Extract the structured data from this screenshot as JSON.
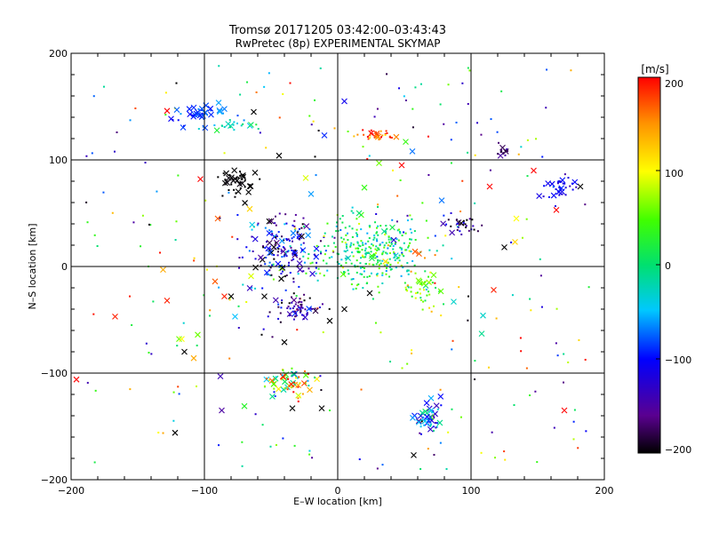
{
  "chart_data": {
    "type": "scatter",
    "title": "Tromsø 20171205 03:42:00–03:43:43",
    "subtitle": "RwPretec (8p) EXPERIMENTAL SKYMAP",
    "xlabel": "E–W location [km]",
    "ylabel": "N–S location [km]",
    "xlim": [
      -200,
      200
    ],
    "ylim": [
      -200,
      200
    ],
    "xticks": [
      "−200",
      "−100",
      "0",
      "100",
      "200"
    ],
    "yticks": [
      "−200",
      "−100",
      "0",
      "100",
      "200"
    ],
    "grid": true,
    "grid_lines_x": [
      -100,
      0,
      100
    ],
    "grid_lines_y": [
      -100,
      0,
      100
    ],
    "colorbar": {
      "label": "[m/s]",
      "range": [
        -200,
        200
      ],
      "ticks": [
        "200",
        "100",
        "0",
        "−100",
        "−200"
      ],
      "colormap": "black-purple-blue-cyan-green-yellow-red"
    },
    "marker_legend_note": "",
    "clusters": [
      {
        "x": -103,
        "y": 142,
        "sx": 10,
        "sy": 5,
        "n": 40,
        "v": -90,
        "spread_v": 30,
        "crossfrac": 0.6
      },
      {
        "x": -78,
        "y": 133,
        "sx": 7,
        "sy": 4,
        "n": 20,
        "v": -20,
        "spread_v": 30,
        "crossfrac": 0.3
      },
      {
        "x": -75,
        "y": 77,
        "sx": 7,
        "sy": 6,
        "n": 40,
        "v": -200,
        "spread_v": 5,
        "crossfrac": 0.5
      },
      {
        "x": -42,
        "y": 15,
        "sx": 14,
        "sy": 17,
        "n": 170,
        "v": -120,
        "spread_v": 90,
        "crossfrac": 0.2
      },
      {
        "x": -30,
        "y": -40,
        "sx": 9,
        "sy": 6,
        "n": 70,
        "v": -150,
        "spread_v": 50,
        "crossfrac": 0.1
      },
      {
        "x": 25,
        "y": 15,
        "sx": 22,
        "sy": 17,
        "n": 320,
        "v": 10,
        "spread_v": 70,
        "crossfrac": 0.05
      },
      {
        "x": 28,
        "y": 122,
        "sx": 8,
        "sy": 3,
        "n": 35,
        "v": 170,
        "spread_v": 40,
        "crossfrac": 0.2
      },
      {
        "x": 65,
        "y": -20,
        "sx": 6,
        "sy": 9,
        "n": 45,
        "v": 60,
        "spread_v": 60,
        "crossfrac": 0.1
      },
      {
        "x": 92,
        "y": 37,
        "sx": 6,
        "sy": 5,
        "n": 30,
        "v": -160,
        "spread_v": 60,
        "crossfrac": 0.2
      },
      {
        "x": 124,
        "y": 108,
        "sx": 3,
        "sy": 3,
        "n": 15,
        "v": -160,
        "spread_v": 30,
        "crossfrac": 0.1
      },
      {
        "x": 167,
        "y": 74,
        "sx": 6,
        "sy": 6,
        "n": 35,
        "v": -110,
        "spread_v": 25,
        "crossfrac": 0.3
      },
      {
        "x": -35,
        "y": -110,
        "sx": 8,
        "sy": 7,
        "n": 60,
        "v": 100,
        "spread_v": 160,
        "crossfrac": 0.4
      },
      {
        "x": 68,
        "y": -142,
        "sx": 5,
        "sy": 8,
        "n": 50,
        "v": -80,
        "spread_v": 80,
        "crossfrac": 0.5
      }
    ],
    "scatter_points": [
      {
        "x": -196,
        "y": -106,
        "v": 200,
        "m": "x"
      },
      {
        "x": -167,
        "y": -47,
        "v": 190,
        "m": "x"
      },
      {
        "x": -156,
        "y": -28,
        "v": 190,
        "m": "."
      },
      {
        "x": -131,
        "y": -3,
        "v": 140,
        "m": "x"
      },
      {
        "x": -128,
        "y": -32,
        "v": 190,
        "m": "x"
      },
      {
        "x": -128,
        "y": 146,
        "v": 200,
        "m": "x"
      },
      {
        "x": -122,
        "y": -156,
        "v": -200,
        "m": "x"
      },
      {
        "x": -121,
        "y": 172,
        "v": -200,
        "m": "."
      },
      {
        "x": -119,
        "y": -68,
        "v": 60,
        "m": "x"
      },
      {
        "x": -117,
        "y": -68,
        "v": 100,
        "m": "x"
      },
      {
        "x": -115,
        "y": -80,
        "v": -200,
        "m": "x"
      },
      {
        "x": -108,
        "y": -86,
        "v": 140,
        "m": "x"
      },
      {
        "x": -105,
        "y": -64,
        "v": 60,
        "m": "x"
      },
      {
        "x": -103,
        "y": 82,
        "v": 200,
        "m": "x"
      },
      {
        "x": -98,
        "y": -3,
        "v": 100,
        "m": "."
      },
      {
        "x": -92,
        "y": -14,
        "v": 170,
        "m": "x"
      },
      {
        "x": -90,
        "y": 45,
        "v": 170,
        "m": "x"
      },
      {
        "x": -88,
        "y": -103,
        "v": -140,
        "m": "x"
      },
      {
        "x": -87,
        "y": -135,
        "v": -150,
        "m": "x"
      },
      {
        "x": -85,
        "y": -28,
        "v": 190,
        "m": "x"
      },
      {
        "x": -80,
        "y": -28,
        "v": -200,
        "m": "x"
      },
      {
        "x": -77,
        "y": -47,
        "v": -50,
        "m": "x"
      },
      {
        "x": -70,
        "y": -131,
        "v": 30,
        "m": "x"
      },
      {
        "x": -66,
        "y": 54,
        "v": 120,
        "m": "x"
      },
      {
        "x": -65,
        "y": -9,
        "v": 90,
        "m": "x"
      },
      {
        "x": -63,
        "y": 145,
        "v": -200,
        "m": "x"
      },
      {
        "x": -62,
        "y": 88,
        "v": -200,
        "m": "x"
      },
      {
        "x": -57,
        "y": -64,
        "v": -200,
        "m": "."
      },
      {
        "x": -55,
        "y": -28,
        "v": -200,
        "m": "x"
      },
      {
        "x": -44,
        "y": 104,
        "v": -200,
        "m": "x"
      },
      {
        "x": -40,
        "y": -71,
        "v": -200,
        "m": "x"
      },
      {
        "x": -34,
        "y": -133,
        "v": -200,
        "m": "x"
      },
      {
        "x": -24,
        "y": 83,
        "v": 90,
        "m": "x"
      },
      {
        "x": -20,
        "y": 68,
        "v": -60,
        "m": "x"
      },
      {
        "x": -17,
        "y": 103,
        "v": -200,
        "m": "."
      },
      {
        "x": -12,
        "y": -133,
        "v": -200,
        "m": "x"
      },
      {
        "x": -10,
        "y": 123,
        "v": -90,
        "m": "x"
      },
      {
        "x": -6,
        "y": -51,
        "v": -200,
        "m": "x"
      },
      {
        "x": -6,
        "y": -135,
        "v": 40,
        "m": "."
      },
      {
        "x": -4,
        "y": 28,
        "v": -20,
        "m": "."
      },
      {
        "x": 5,
        "y": 155,
        "v": -110,
        "m": "x"
      },
      {
        "x": 5,
        "y": -40,
        "v": -200,
        "m": "x"
      },
      {
        "x": 20,
        "y": 74,
        "v": 40,
        "m": "x"
      },
      {
        "x": 24,
        "y": -25,
        "v": -200,
        "m": "x"
      },
      {
        "x": 31,
        "y": 97,
        "v": 60,
        "m": "x"
      },
      {
        "x": 48,
        "y": 95,
        "v": 200,
        "m": "x"
      },
      {
        "x": 51,
        "y": 117,
        "v": 40,
        "m": "x"
      },
      {
        "x": 56,
        "y": 108,
        "v": -70,
        "m": "x"
      },
      {
        "x": 57,
        "y": -177,
        "v": -200,
        "m": "x"
      },
      {
        "x": 58,
        "y": 14,
        "v": 170,
        "m": "x"
      },
      {
        "x": 61,
        "y": 12,
        "v": 170,
        "m": "x"
      },
      {
        "x": 72,
        "y": -8,
        "v": 60,
        "m": "x"
      },
      {
        "x": 78,
        "y": 62,
        "v": -70,
        "m": "x"
      },
      {
        "x": 87,
        "y": -33,
        "v": -30,
        "m": "x"
      },
      {
        "x": 98,
        "y": -28,
        "v": -200,
        "m": "."
      },
      {
        "x": 109,
        "y": -46,
        "v": -30,
        "m": "x"
      },
      {
        "x": 108,
        "y": -63,
        "v": -10,
        "m": "x"
      },
      {
        "x": 114,
        "y": 75,
        "v": 200,
        "m": "x"
      },
      {
        "x": 117,
        "y": -22,
        "v": 190,
        "m": "x"
      },
      {
        "x": 125,
        "y": 18,
        "v": -200,
        "m": "x"
      },
      {
        "x": 134,
        "y": 45,
        "v": 100,
        "m": "x"
      },
      {
        "x": 133,
        "y": 23,
        "v": 120,
        "m": "x"
      },
      {
        "x": 147,
        "y": 90,
        "v": 200,
        "m": "x"
      },
      {
        "x": 164,
        "y": 53,
        "v": 200,
        "m": "x"
      },
      {
        "x": 170,
        "y": -135,
        "v": 200,
        "m": "x"
      },
      {
        "x": 182,
        "y": 75,
        "v": -200,
        "m": "x"
      }
    ]
  }
}
